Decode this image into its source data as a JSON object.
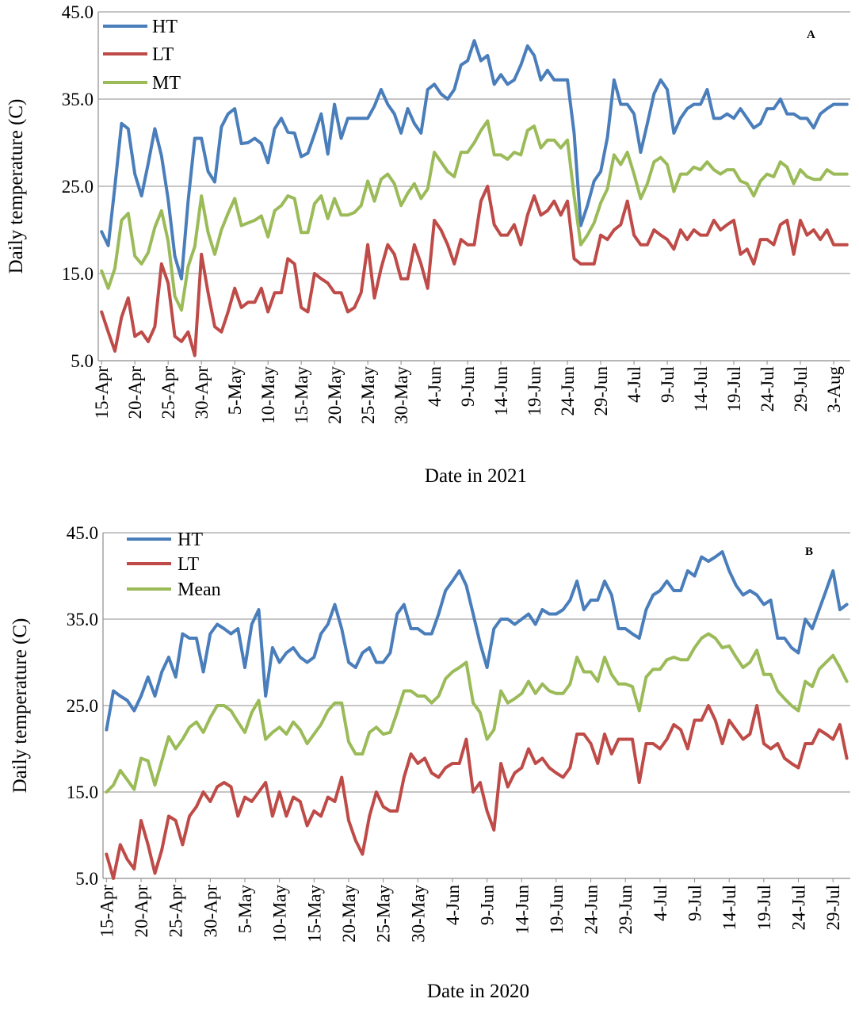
{
  "chart_data": [
    {
      "type": "line",
      "panel_label": "A",
      "xlabel": "Date in 2021",
      "ylabel": "Daily temperature (C)",
      "ylim": [
        5,
        45
      ],
      "yticks": [
        "5.0",
        "15.0",
        "25.0",
        "35.0",
        "45.0"
      ],
      "grid": true,
      "legend_position": "top-left",
      "x_tick_labels": [
        "15-Apr",
        "20-Apr",
        "25-Apr",
        "30-Apr",
        "5-May",
        "10-May",
        "15-May",
        "20-May",
        "25-May",
        "30-May",
        "4-Jun",
        "9-Jun",
        "14-Jun",
        "19-Jun",
        "24-Jun",
        "29-Jun",
        "4-Jul",
        "9-Jul",
        "14-Jul",
        "19-Jul",
        "24-Jul",
        "29-Jul",
        "3-Aug"
      ],
      "x_tick_day_index": [
        0,
        5,
        10,
        15,
        20,
        25,
        30,
        35,
        40,
        45,
        50,
        55,
        60,
        65,
        70,
        75,
        80,
        85,
        90,
        95,
        100,
        105,
        110
      ],
      "n_days": 113,
      "series": [
        {
          "name": "HT",
          "color": "#4a7ebb",
          "values": [
            19.8,
            18.2,
            25.0,
            32.2,
            31.6,
            26.4,
            23.9,
            27.6,
            31.6,
            28.5,
            23.5,
            17.0,
            14.4,
            23.3,
            30.5,
            30.5,
            26.7,
            25.5,
            31.8,
            33.3,
            33.9,
            29.9,
            30.0,
            30.5,
            29.9,
            27.7,
            31.6,
            32.8,
            31.2,
            31.1,
            28.4,
            28.8,
            31.0,
            33.3,
            28.7,
            34.4,
            30.5,
            32.8,
            32.8,
            32.8,
            32.8,
            34.2,
            36.1,
            34.4,
            33.3,
            31.1,
            33.9,
            32.2,
            31.1,
            36.1,
            36.7,
            35.6,
            35.0,
            36.1,
            38.9,
            39.4,
            41.7,
            39.4,
            40.0,
            36.7,
            37.8,
            36.7,
            37.2,
            38.9,
            41.1,
            40.0,
            37.2,
            38.3,
            37.2,
            37.2,
            37.2,
            31.1,
            20.5,
            22.8,
            25.6,
            26.7,
            30.6,
            37.2,
            34.4,
            34.4,
            33.3,
            28.9,
            32.2,
            35.6,
            37.2,
            36.1,
            31.1,
            32.8,
            33.9,
            34.4,
            34.4,
            36.1,
            32.8,
            32.8,
            33.3,
            32.8,
            33.9,
            32.8,
            31.7,
            32.2,
            33.9,
            33.9,
            35.0,
            33.3,
            33.3,
            32.8,
            32.8,
            31.7,
            33.3,
            33.9,
            34.4,
            34.4,
            34.4
          ]
        },
        {
          "name": "LT",
          "color": "#be4b48",
          "values": [
            10.6,
            8.3,
            6.1,
            10.0,
            12.2,
            7.8,
            8.3,
            7.2,
            8.9,
            16.1,
            13.9,
            7.8,
            7.2,
            8.3,
            5.6,
            17.2,
            12.8,
            8.9,
            8.3,
            10.6,
            13.3,
            11.1,
            11.7,
            11.7,
            13.3,
            10.6,
            12.8,
            12.8,
            16.7,
            16.1,
            11.1,
            10.6,
            15.0,
            14.4,
            13.9,
            12.8,
            12.8,
            10.6,
            11.1,
            12.8,
            18.3,
            12.2,
            15.6,
            18.3,
            17.2,
            14.4,
            14.4,
            18.3,
            16.1,
            13.3,
            21.1,
            20.0,
            18.3,
            16.1,
            18.9,
            18.3,
            18.3,
            23.3,
            25.0,
            20.6,
            19.4,
            19.4,
            20.6,
            18.3,
            21.7,
            23.9,
            21.7,
            22.2,
            23.3,
            21.7,
            23.3,
            16.7,
            16.1,
            16.1,
            16.1,
            19.4,
            18.9,
            20.0,
            20.6,
            23.3,
            19.4,
            18.3,
            18.3,
            20.0,
            19.4,
            18.9,
            17.8,
            20.0,
            18.9,
            20.0,
            19.4,
            19.4,
            21.1,
            20.0,
            20.6,
            21.1,
            17.2,
            17.8,
            16.1,
            18.9,
            18.9,
            18.3,
            20.6,
            21.1,
            17.2,
            21.1,
            19.4,
            20.0,
            18.9,
            20.0,
            18.3,
            18.3,
            18.3
          ]
        },
        {
          "name": "MT",
          "color": "#9bbb59",
          "values": [
            15.3,
            13.3,
            15.6,
            21.1,
            21.9,
            17.0,
            16.1,
            17.4,
            20.3,
            22.2,
            18.7,
            12.4,
            10.8,
            15.8,
            18.1,
            23.9,
            19.7,
            17.2,
            20.0,
            21.9,
            23.6,
            20.5,
            20.8,
            21.1,
            21.6,
            19.2,
            22.2,
            22.8,
            23.9,
            23.6,
            19.7,
            19.7,
            23.0,
            23.9,
            21.3,
            23.6,
            21.7,
            21.7,
            22.0,
            22.8,
            25.6,
            23.3,
            25.8,
            26.4,
            25.3,
            22.8,
            24.2,
            25.3,
            23.6,
            24.7,
            28.9,
            27.8,
            26.7,
            26.1,
            28.9,
            28.9,
            30.0,
            31.4,
            32.5,
            28.6,
            28.6,
            28.1,
            28.9,
            28.6,
            31.4,
            31.9,
            29.4,
            30.3,
            30.3,
            29.4,
            30.3,
            23.9,
            18.3,
            19.4,
            20.8,
            23.1,
            24.7,
            28.6,
            27.5,
            28.9,
            26.4,
            23.6,
            25.3,
            27.8,
            28.3,
            27.5,
            24.4,
            26.4,
            26.4,
            27.2,
            26.9,
            27.8,
            26.9,
            26.4,
            26.9,
            26.9,
            25.6,
            25.3,
            23.9,
            25.6,
            26.4,
            26.1,
            27.8,
            27.2,
            25.3,
            26.9,
            26.1,
            25.8,
            25.8,
            26.9,
            26.4,
            26.4,
            26.4
          ]
        }
      ]
    },
    {
      "type": "line",
      "panel_label": "B",
      "xlabel": "Date in 2020",
      "ylabel": "Daily temperature (C)",
      "ylim": [
        5,
        45
      ],
      "yticks": [
        "5.0",
        "15.0",
        "25.0",
        "35.0",
        "45.0"
      ],
      "grid": true,
      "legend_position": "top-left",
      "x_tick_labels": [
        "15-Apr",
        "20-Apr",
        "25-Apr",
        "30-Apr",
        "5-May",
        "10-May",
        "15-May",
        "20-May",
        "25-May",
        "30-May",
        "4-Jun",
        "9-Jun",
        "14-Jun",
        "19-Jun",
        "24-Jun",
        "29-Jun",
        "4-Jul",
        "9-Jul",
        "14-Jul",
        "19-Jul",
        "24-Jul",
        "29-Jul"
      ],
      "x_tick_day_index": [
        0,
        5,
        10,
        15,
        20,
        25,
        30,
        35,
        40,
        45,
        50,
        55,
        60,
        65,
        70,
        75,
        80,
        85,
        90,
        95,
        100,
        105
      ],
      "n_days": 108,
      "series": [
        {
          "name": "HT",
          "color": "#4a7ebb",
          "values": [
            22.2,
            26.7,
            26.1,
            25.6,
            24.4,
            26.1,
            28.3,
            26.1,
            28.9,
            30.6,
            28.3,
            33.3,
            32.8,
            32.8,
            28.9,
            33.3,
            34.4,
            33.9,
            33.3,
            33.9,
            29.4,
            34.4,
            36.1,
            26.1,
            31.7,
            30.0,
            31.1,
            31.7,
            30.6,
            30.0,
            30.6,
            33.3,
            34.4,
            36.7,
            33.9,
            30.0,
            29.4,
            31.1,
            31.7,
            30.0,
            30.0,
            31.1,
            35.6,
            36.7,
            33.9,
            33.9,
            33.3,
            33.3,
            35.6,
            38.3,
            39.4,
            40.6,
            38.9,
            35.6,
            32.2,
            29.4,
            33.9,
            35.0,
            35.0,
            34.4,
            35.0,
            35.6,
            34.4,
            36.1,
            35.6,
            35.6,
            36.1,
            37.2,
            39.4,
            36.1,
            37.2,
            37.2,
            39.4,
            37.8,
            33.9,
            33.9,
            33.3,
            32.8,
            36.1,
            37.8,
            38.3,
            39.4,
            38.3,
            38.3,
            40.6,
            40.0,
            42.2,
            41.7,
            42.2,
            42.8,
            40.6,
            38.9,
            37.8,
            38.3,
            37.8,
            36.7,
            37.2,
            32.8,
            32.8,
            31.7,
            31.1,
            35.0,
            33.9,
            36.1,
            38.3,
            40.6,
            36.1,
            36.7
          ]
        },
        {
          "name": "LT",
          "color": "#be4b48",
          "values": [
            7.8,
            5.0,
            8.9,
            7.2,
            6.1,
            11.7,
            8.9,
            5.6,
            8.3,
            12.2,
            11.7,
            8.9,
            12.2,
            13.3,
            15.0,
            13.9,
            15.6,
            16.1,
            15.6,
            12.2,
            14.4,
            13.9,
            15.0,
            16.1,
            12.2,
            15.0,
            12.2,
            14.4,
            13.9,
            11.1,
            12.8,
            12.2,
            14.4,
            13.9,
            16.7,
            11.7,
            9.4,
            7.8,
            12.2,
            15.0,
            13.3,
            12.8,
            12.8,
            16.7,
            19.4,
            18.3,
            18.9,
            17.2,
            16.7,
            17.8,
            18.3,
            18.3,
            21.1,
            15.0,
            16.1,
            12.8,
            10.6,
            18.3,
            15.6,
            17.2,
            17.8,
            20.0,
            18.3,
            18.9,
            17.8,
            17.2,
            16.7,
            17.8,
            21.7,
            21.7,
            20.6,
            18.3,
            21.7,
            19.4,
            21.1,
            21.1,
            21.1,
            16.1,
            20.6,
            20.6,
            20.0,
            21.1,
            22.8,
            22.2,
            20.0,
            23.3,
            23.3,
            25.0,
            23.3,
            20.6,
            23.3,
            22.2,
            21.1,
            21.7,
            25.0,
            20.6,
            20.0,
            20.6,
            18.9,
            18.3,
            17.8,
            20.6,
            20.6,
            22.2,
            21.7,
            21.1,
            22.8,
            18.9
          ]
        },
        {
          "name": "Mean",
          "color": "#9bbb59",
          "values": [
            15.0,
            15.8,
            17.5,
            16.4,
            15.3,
            18.9,
            18.6,
            15.8,
            18.6,
            21.4,
            20.0,
            21.1,
            22.5,
            23.1,
            21.9,
            23.6,
            25.0,
            25.0,
            24.4,
            23.1,
            21.9,
            24.2,
            25.6,
            21.1,
            21.9,
            22.5,
            21.7,
            23.1,
            22.2,
            20.6,
            21.7,
            22.8,
            24.4,
            25.3,
            25.3,
            20.8,
            19.4,
            19.4,
            21.9,
            22.5,
            21.7,
            21.9,
            24.2,
            26.7,
            26.7,
            26.1,
            26.1,
            25.3,
            26.1,
            28.1,
            28.9,
            29.4,
            30.0,
            25.3,
            24.2,
            21.1,
            22.2,
            26.7,
            25.3,
            25.8,
            26.4,
            27.8,
            26.4,
            27.5,
            26.7,
            26.4,
            26.4,
            27.5,
            30.6,
            28.9,
            28.9,
            27.8,
            30.6,
            28.6,
            27.5,
            27.5,
            27.2,
            24.4,
            28.3,
            29.2,
            29.2,
            30.3,
            30.6,
            30.3,
            30.3,
            31.7,
            32.8,
            33.3,
            32.8,
            31.7,
            31.9,
            30.6,
            29.4,
            30.0,
            31.4,
            28.6,
            28.6,
            26.7,
            25.8,
            25.0,
            24.4,
            27.8,
            27.2,
            29.2,
            30.0,
            30.8,
            29.4,
            27.8
          ]
        }
      ]
    }
  ]
}
